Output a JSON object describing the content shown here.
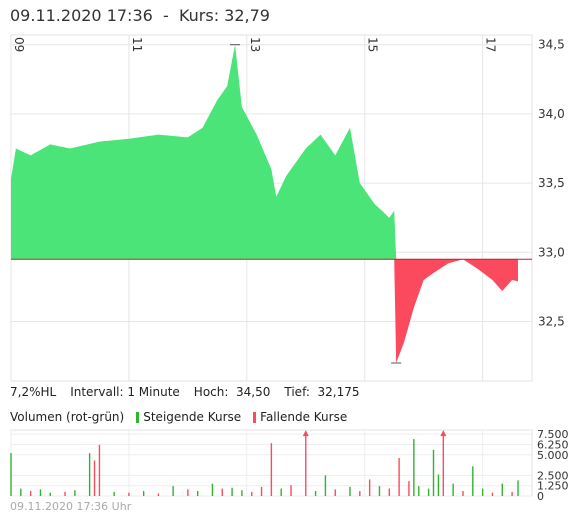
{
  "header": {
    "datetime": "09.11.2020 17:36",
    "separator": "-",
    "kurs_label": "Kurs:",
    "kurs_value": "32,79"
  },
  "stats": {
    "hl": "7,2%HL",
    "interval": "Intervall: 1 Minute",
    "hoch": "Hoch:  34,50",
    "tief": "Tief:  32,175"
  },
  "volume_header": {
    "title": "Volumen (rot-grün)",
    "rising": "Steigende Kurse",
    "falling": "Fallende Kurse"
  },
  "footer": "09.11.2020 17:36 Uhr",
  "colors": {
    "rising": "#4ae479",
    "falling": "#fb4a5e",
    "baseline": "#c0202a",
    "grid": "#e6e6e6"
  },
  "chart_data": [
    {
      "type": "area",
      "x_ticks": [
        "09",
        "11",
        "13",
        "15",
        "17"
      ],
      "y_ticks": [
        "34,5",
        "34,0",
        "33,5",
        "33,0",
        "32,5"
      ],
      "y_tick_values": [
        34.5,
        34.0,
        33.5,
        33.0,
        32.5
      ],
      "ylim": [
        32.07,
        34.57
      ],
      "baseline": 32.95,
      "x_range": [
        "09:00",
        "17:36"
      ],
      "grid": true,
      "high": 34.5,
      "low": 32.175,
      "series": [
        {
          "time": "09:00",
          "price": 33.53
        },
        {
          "time": "09:05",
          "price": 33.75
        },
        {
          "time": "09:20",
          "price": 33.7
        },
        {
          "time": "09:40",
          "price": 33.78
        },
        {
          "time": "10:00",
          "price": 33.75
        },
        {
          "time": "10:30",
          "price": 33.8
        },
        {
          "time": "11:00",
          "price": 33.82
        },
        {
          "time": "11:30",
          "price": 33.85
        },
        {
          "time": "12:00",
          "price": 33.83
        },
        {
          "time": "12:15",
          "price": 33.9
        },
        {
          "time": "12:30",
          "price": 34.1
        },
        {
          "time": "12:40",
          "price": 34.2
        },
        {
          "time": "12:48",
          "price": 34.5
        },
        {
          "time": "12:55",
          "price": 34.05
        },
        {
          "time": "13:10",
          "price": 33.85
        },
        {
          "time": "13:25",
          "price": 33.6
        },
        {
          "time": "13:30",
          "price": 33.4
        },
        {
          "time": "13:40",
          "price": 33.55
        },
        {
          "time": "14:00",
          "price": 33.75
        },
        {
          "time": "14:15",
          "price": 33.85
        },
        {
          "time": "14:30",
          "price": 33.7
        },
        {
          "time": "14:45",
          "price": 33.9
        },
        {
          "time": "14:55",
          "price": 33.5
        },
        {
          "time": "15:10",
          "price": 33.35
        },
        {
          "time": "15:25",
          "price": 33.25
        },
        {
          "time": "15:30",
          "price": 33.3
        },
        {
          "time": "15:32",
          "price": 32.2
        },
        {
          "time": "15:40",
          "price": 32.35
        },
        {
          "time": "15:50",
          "price": 32.6
        },
        {
          "time": "16:00",
          "price": 32.8
        },
        {
          "time": "16:10",
          "price": 32.85
        },
        {
          "time": "16:25",
          "price": 32.92
        },
        {
          "time": "16:40",
          "price": 32.95
        },
        {
          "time": "16:55",
          "price": 32.88
        },
        {
          "time": "17:10",
          "price": 32.8
        },
        {
          "time": "17:20",
          "price": 32.72
        },
        {
          "time": "17:30",
          "price": 32.8
        },
        {
          "time": "17:36",
          "price": 32.79
        }
      ]
    },
    {
      "type": "bar",
      "y_ticks": [
        "7.500",
        "6.250",
        "5.000",
        "2.500",
        "1.250",
        "0"
      ],
      "y_tick_values": [
        7500,
        6250,
        5000,
        2500,
        1250,
        0
      ],
      "ylim": [
        0,
        8000
      ],
      "bars": [
        {
          "time": "09:00",
          "volume": 5200,
          "dir": "up"
        },
        {
          "time": "09:10",
          "volume": 900,
          "dir": "up"
        },
        {
          "time": "09:20",
          "volume": 600,
          "dir": "down"
        },
        {
          "time": "09:30",
          "volume": 800,
          "dir": "up"
        },
        {
          "time": "09:40",
          "volume": 400,
          "dir": "up"
        },
        {
          "time": "09:55",
          "volume": 500,
          "dir": "down"
        },
        {
          "time": "10:05",
          "volume": 700,
          "dir": "up"
        },
        {
          "time": "10:20",
          "volume": 5200,
          "dir": "up"
        },
        {
          "time": "10:25",
          "volume": 4300,
          "dir": "down"
        },
        {
          "time": "10:30",
          "volume": 6200,
          "dir": "down"
        },
        {
          "time": "10:45",
          "volume": 500,
          "dir": "up"
        },
        {
          "time": "11:00",
          "volume": 400,
          "dir": "down"
        },
        {
          "time": "11:15",
          "volume": 600,
          "dir": "up"
        },
        {
          "time": "11:30",
          "volume": 300,
          "dir": "down"
        },
        {
          "time": "11:45",
          "volume": 1200,
          "dir": "up"
        },
        {
          "time": "12:00",
          "volume": 800,
          "dir": "down"
        },
        {
          "time": "12:10",
          "volume": 600,
          "dir": "up"
        },
        {
          "time": "12:25",
          "volume": 1500,
          "dir": "up"
        },
        {
          "time": "12:35",
          "volume": 900,
          "dir": "down"
        },
        {
          "time": "12:45",
          "volume": 1000,
          "dir": "up"
        },
        {
          "time": "12:55",
          "volume": 700,
          "dir": "up"
        },
        {
          "time": "13:05",
          "volume": 500,
          "dir": "down"
        },
        {
          "time": "13:15",
          "volume": 1100,
          "dir": "down"
        },
        {
          "time": "13:25",
          "volume": 6400,
          "dir": "down"
        },
        {
          "time": "13:35",
          "volume": 900,
          "dir": "up"
        },
        {
          "time": "13:45",
          "volume": 1300,
          "dir": "down"
        },
        {
          "time": "14:00",
          "volume": 7500,
          "dir": "down"
        },
        {
          "time": "14:10",
          "volume": 600,
          "dir": "up"
        },
        {
          "time": "14:20",
          "volume": 2500,
          "dir": "up"
        },
        {
          "time": "14:30",
          "volume": 800,
          "dir": "down"
        },
        {
          "time": "14:45",
          "volume": 1100,
          "dir": "up"
        },
        {
          "time": "14:55",
          "volume": 600,
          "dir": "down"
        },
        {
          "time": "15:05",
          "volume": 2000,
          "dir": "down"
        },
        {
          "time": "15:15",
          "volume": 1200,
          "dir": "up"
        },
        {
          "time": "15:25",
          "volume": 900,
          "dir": "down"
        },
        {
          "time": "15:35",
          "volume": 4600,
          "dir": "down"
        },
        {
          "time": "15:45",
          "volume": 1800,
          "dir": "down"
        },
        {
          "time": "15:50",
          "volume": 6900,
          "dir": "up"
        },
        {
          "time": "15:55",
          "volume": 1200,
          "dir": "up"
        },
        {
          "time": "16:05",
          "volume": 900,
          "dir": "up"
        },
        {
          "time": "16:10",
          "volume": 5600,
          "dir": "up"
        },
        {
          "time": "16:15",
          "volume": 2600,
          "dir": "up"
        },
        {
          "time": "16:20",
          "volume": 7500,
          "dir": "down"
        },
        {
          "time": "16:30",
          "volume": 1500,
          "dir": "up"
        },
        {
          "time": "16:40",
          "volume": 600,
          "dir": "down"
        },
        {
          "time": "16:50",
          "volume": 3600,
          "dir": "up"
        },
        {
          "time": "17:00",
          "volume": 900,
          "dir": "up"
        },
        {
          "time": "17:10",
          "volume": 400,
          "dir": "down"
        },
        {
          "time": "17:20",
          "volume": 1500,
          "dir": "up"
        },
        {
          "time": "17:30",
          "volume": 500,
          "dir": "down"
        },
        {
          "time": "17:36",
          "volume": 1900,
          "dir": "up"
        }
      ]
    }
  ]
}
